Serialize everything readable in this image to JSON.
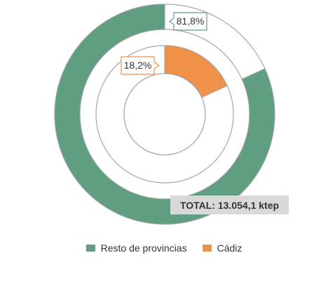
{
  "chart_data": {
    "type": "pie",
    "variant": "nested-donut",
    "rings": [
      {
        "ring": "outer",
        "category": "Resto de provincias",
        "value": 81.8,
        "label": "81,8%"
      },
      {
        "ring": "inner",
        "category": "Cádiz",
        "value": 18.2,
        "label": "18,2%"
      }
    ],
    "total_label": "TOTAL: 13.054,1 ktep",
    "legend": [
      {
        "label": "Resto de provincias",
        "color": "#5f9e80"
      },
      {
        "label": "Cádiz",
        "color": "#ef9149"
      }
    ],
    "legend_position": "bottom",
    "colors": {
      "resto": "#5f9e80",
      "cadiz": "#ef9149",
      "ring_outline": "#a6a6a6",
      "total_box": "#d9d9d9"
    }
  }
}
